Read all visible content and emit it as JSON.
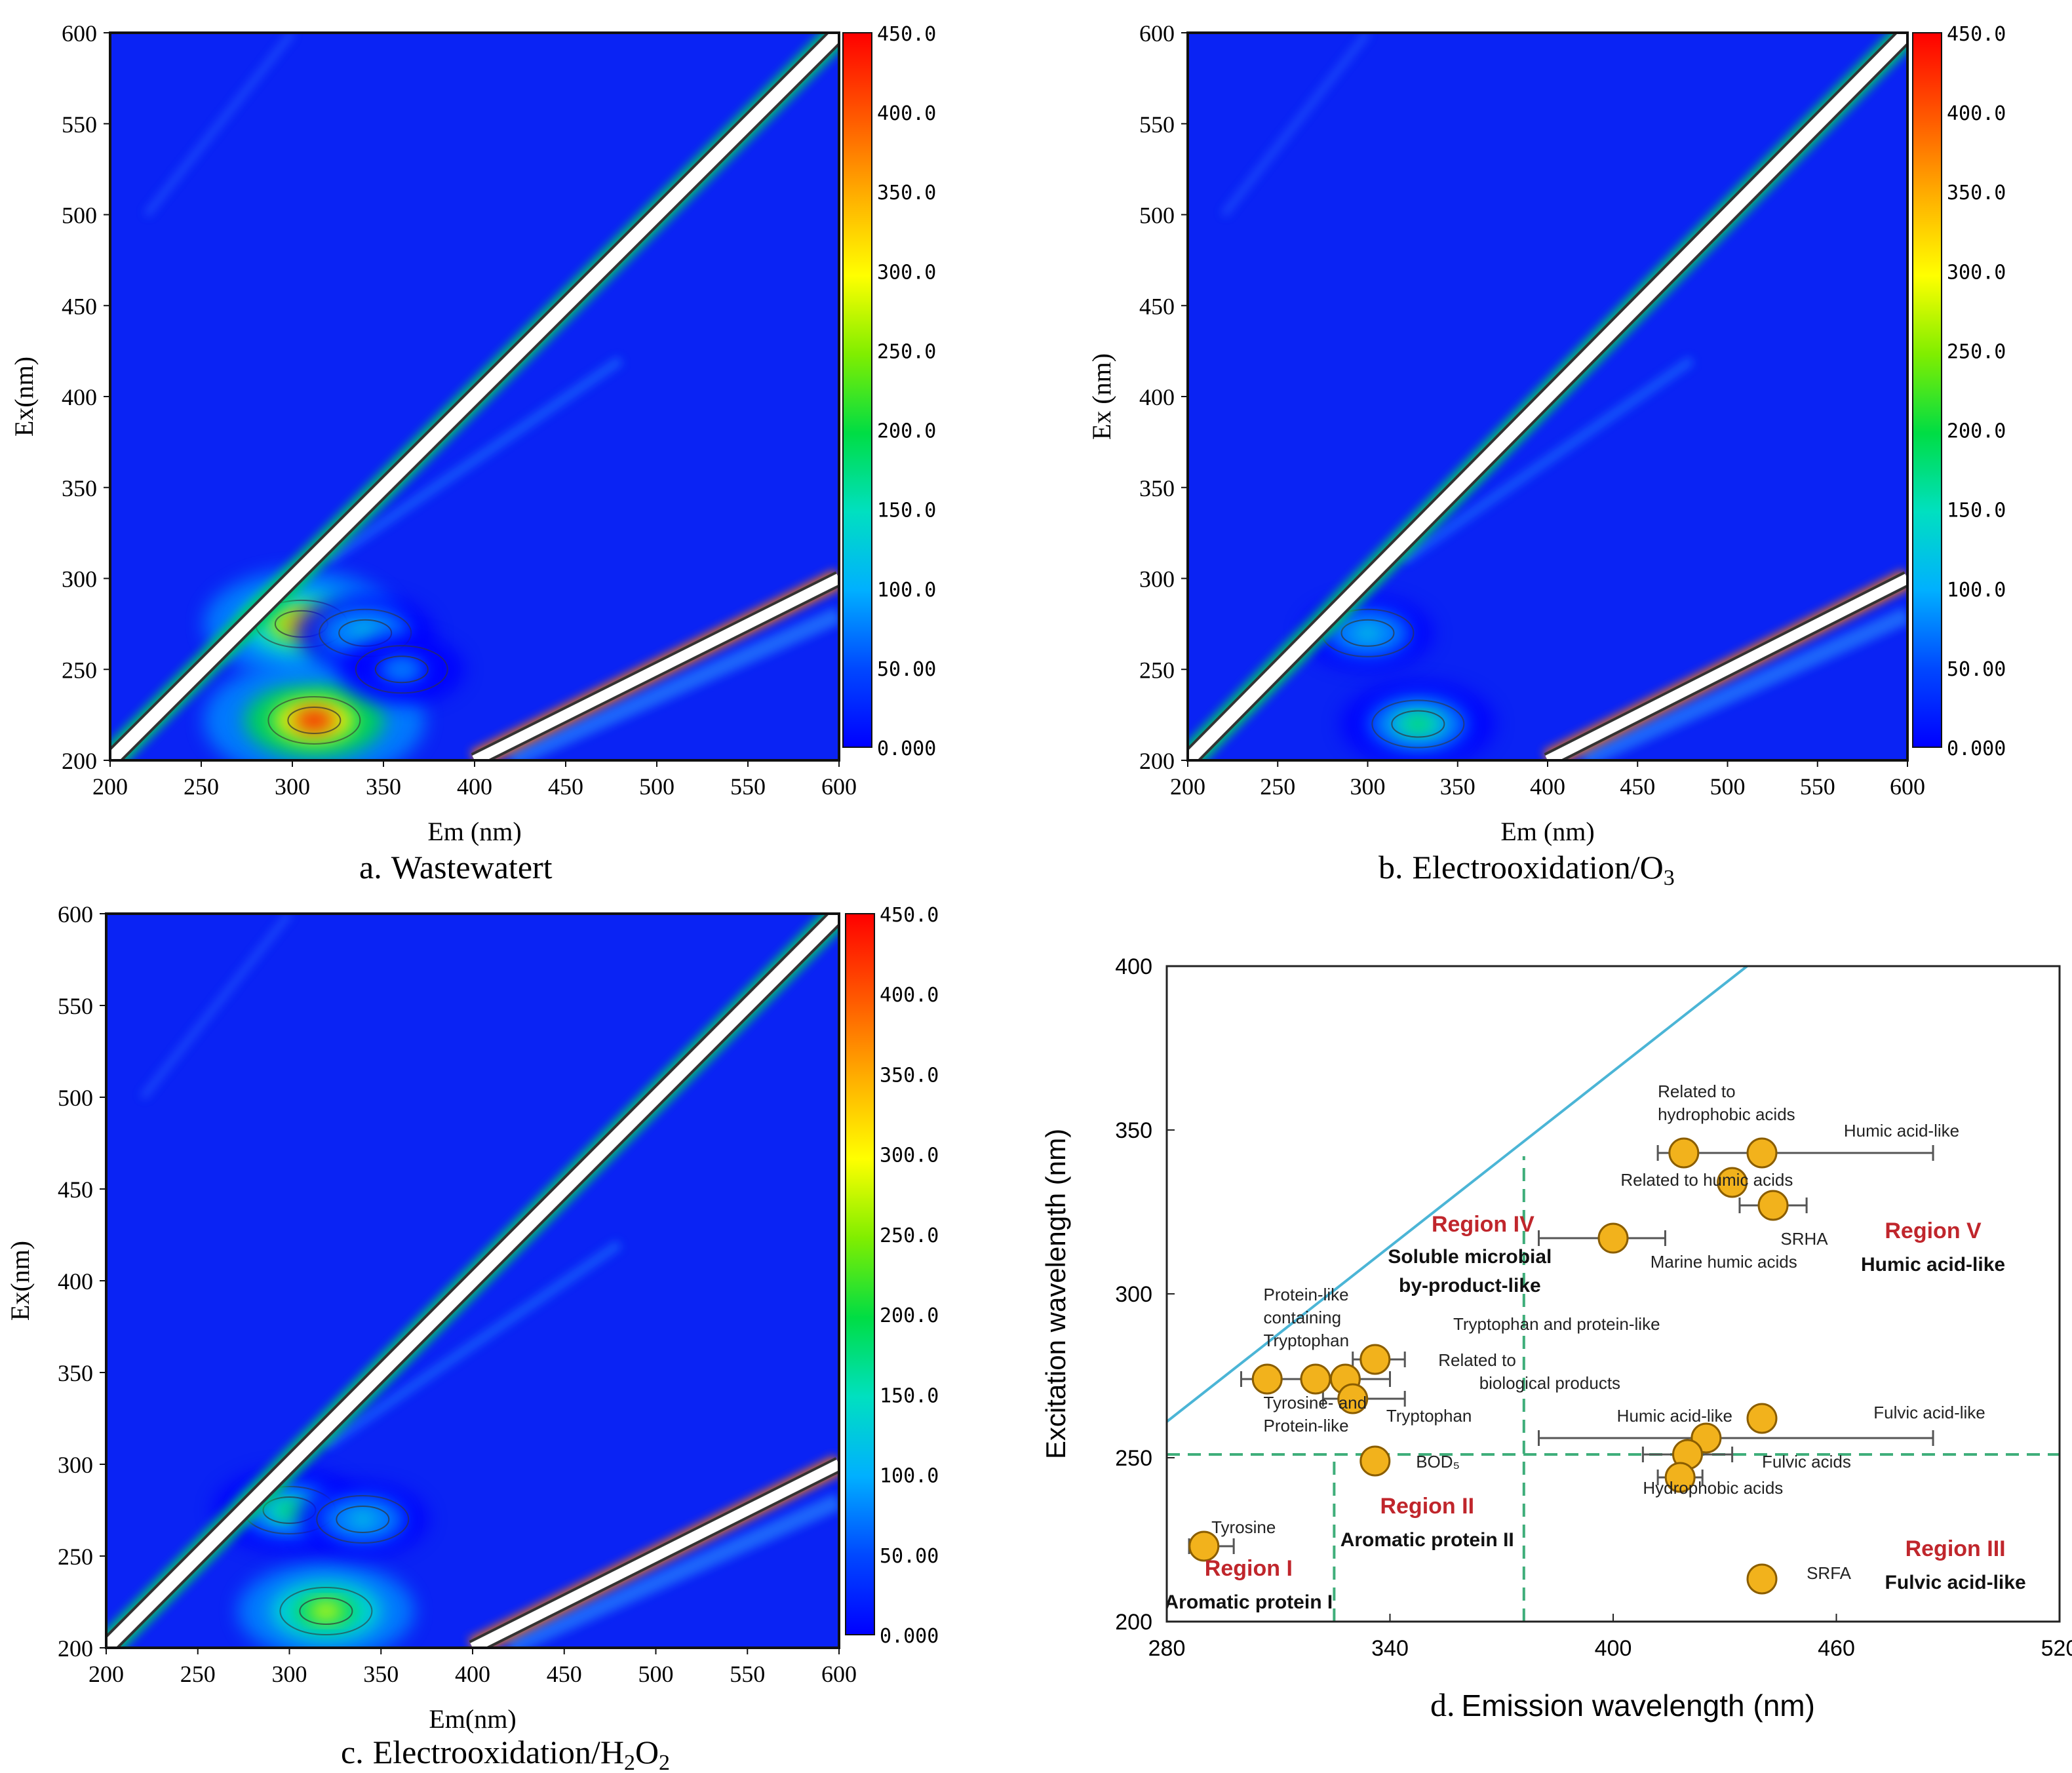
{
  "chart_data": [
    {
      "type": "heatmap",
      "panel": "a",
      "caption_letter": "a.",
      "caption_text": "Wastewatert",
      "xlabel": "Em (nm)",
      "ylabel": "Ex(nm)",
      "xlim": [
        200,
        600
      ],
      "ylim": [
        200,
        600
      ],
      "x_ticks": [
        "200",
        "250",
        "300",
        "350",
        "400",
        "450",
        "500",
        "550",
        "600"
      ],
      "y_ticks": [
        "200",
        "250",
        "300",
        "350",
        "400",
        "450",
        "500",
        "550",
        "600"
      ],
      "colorbar_ticks": [
        "0.000",
        "50.00",
        "100.0",
        "150.0",
        "200.0",
        "250.0",
        "300.0",
        "350.0",
        "400.0",
        "450.0"
      ],
      "colorbar_range": [
        0,
        450
      ],
      "peaks": [
        {
          "em": 312,
          "ex": 222,
          "intensity": 430
        },
        {
          "em": 305,
          "ex": 275,
          "intensity": 330
        },
        {
          "em": 340,
          "ex": 270,
          "intensity": 120
        },
        {
          "em": 360,
          "ex": 250,
          "intensity": 70
        }
      ]
    },
    {
      "type": "heatmap",
      "panel": "b",
      "caption_letter": "b.",
      "caption_text": "Electrooxidation/O",
      "caption_sub": "3",
      "xlabel": "Em (nm)",
      "ylabel": "Ex (nm)",
      "xlim": [
        200,
        600
      ],
      "ylim": [
        200,
        600
      ],
      "x_ticks": [
        "200",
        "250",
        "300",
        "350",
        "400",
        "450",
        "500",
        "550",
        "600"
      ],
      "y_ticks": [
        "200",
        "250",
        "300",
        "350",
        "400",
        "450",
        "500",
        "550",
        "600"
      ],
      "colorbar_ticks": [
        "0.000",
        "50.00",
        "100.0",
        "150.0",
        "200.0",
        "250.0",
        "300.0",
        "350.0",
        "400.0",
        "450.0"
      ],
      "colorbar_range": [
        0,
        450
      ],
      "peaks": [
        {
          "em": 328,
          "ex": 220,
          "intensity": 180
        },
        {
          "em": 300,
          "ex": 270,
          "intensity": 90
        }
      ]
    },
    {
      "type": "heatmap",
      "panel": "c",
      "caption_letter": "c.",
      "caption_text": "Electrooxidation/H",
      "caption_sub": "2",
      "caption_text2": "O",
      "caption_sub2": "2",
      "xlabel": "Em(nm)",
      "ylabel": "Ex(nm)",
      "xlim": [
        200,
        600
      ],
      "ylim": [
        200,
        600
      ],
      "x_ticks": [
        "200",
        "250",
        "300",
        "350",
        "400",
        "450",
        "500",
        "550",
        "600"
      ],
      "y_ticks": [
        "200",
        "250",
        "300",
        "350",
        "400",
        "450",
        "500",
        "550",
        "600"
      ],
      "colorbar_ticks": [
        "0.000",
        "50.00",
        "100.0",
        "150.0",
        "200.0",
        "250.0",
        "300.0",
        "350.0",
        "400.0",
        "450.0"
      ],
      "colorbar_range": [
        0,
        450
      ],
      "peaks": [
        {
          "em": 320,
          "ex": 220,
          "intensity": 260
        },
        {
          "em": 300,
          "ex": 275,
          "intensity": 170
        },
        {
          "em": 340,
          "ex": 270,
          "intensity": 90
        }
      ]
    },
    {
      "type": "scatter",
      "panel": "d",
      "caption_letter": "d.",
      "caption_text": "Emission wavelength (nm)",
      "xlabel": "",
      "ylabel": "Excitation wavelength (nm)",
      "xlim": [
        280,
        520
      ],
      "ylim": [
        200,
        400
      ],
      "x_ticks": [
        "280",
        "340",
        "400",
        "460",
        "520"
      ],
      "y_ticks": [
        "200",
        "250",
        "300",
        "350",
        "400"
      ],
      "points": [
        {
          "x": 290,
          "y": 223,
          "xerr": [
            286,
            298
          ]
        },
        {
          "x": 307,
          "y": 274,
          "xerr": [
            300,
            318
          ]
        },
        {
          "x": 320,
          "y": 274
        },
        {
          "x": 328,
          "y": 274,
          "xerr": [
            318,
            340
          ]
        },
        {
          "x": 330,
          "y": 268,
          "xerr": [
            322,
            344
          ]
        },
        {
          "x": 336,
          "y": 280,
          "xerr": [
            330,
            344
          ]
        },
        {
          "x": 336,
          "y": 249
        },
        {
          "x": 400,
          "y": 317,
          "xerr": [
            380,
            414
          ]
        },
        {
          "x": 419,
          "y": 343,
          "xerr": [
            412,
            422
          ]
        },
        {
          "x": 432,
          "y": 334
        },
        {
          "x": 440,
          "y": 343,
          "xerr": [
            420,
            486
          ]
        },
        {
          "x": 443,
          "y": 327,
          "xerr": [
            434,
            452
          ]
        },
        {
          "x": 425,
          "y": 256,
          "xerr": [
            380,
            486
          ]
        },
        {
          "x": 420,
          "y": 251,
          "xerr": [
            408,
            432
          ]
        },
        {
          "x": 418,
          "y": 244,
          "xerr": [
            412,
            424
          ]
        },
        {
          "x": 440,
          "y": 262
        },
        {
          "x": 440,
          "y": 213
        }
      ],
      "reference_line": {
        "from": [
          280,
          261
        ],
        "to": [
          436,
          400
        ]
      },
      "dashed_lines": {
        "x": [
          325,
          376
        ],
        "y": [
          251
        ]
      },
      "annotations": [
        {
          "text": "Tyrosine",
          "x": 292,
          "y": 227
        },
        {
          "text": "Protein-like",
          "x": 306,
          "y": 298
        },
        {
          "text": "containing",
          "x": 306,
          "y": 291
        },
        {
          "text": "Tryptophan",
          "x": 306,
          "y": 284
        },
        {
          "text": "Tyrosine- and",
          "x": 306,
          "y": 265
        },
        {
          "text": "Protein-like",
          "x": 306,
          "y": 258
        },
        {
          "text": "Tryptophan and protein-like",
          "x": 357,
          "y": 289
        },
        {
          "text": "Related to",
          "x": 353,
          "y": 278
        },
        {
          "text": "biological products",
          "x": 364,
          "y": 271
        },
        {
          "text": "Tryptophan",
          "x": 339,
          "y": 261
        },
        {
          "text": "BOD₅",
          "x": 347,
          "y": 247
        },
        {
          "text": "Related to",
          "x": 412,
          "y": 360
        },
        {
          "text": "hydrophobic acids",
          "x": 412,
          "y": 353
        },
        {
          "text": "Humic acid-like",
          "x": 462,
          "y": 348
        },
        {
          "text": "Related to humic acids",
          "x": 402,
          "y": 333
        },
        {
          "text": "SRHA",
          "x": 445,
          "y": 315
        },
        {
          "text": "Marine humic acids",
          "x": 410,
          "y": 308
        },
        {
          "text": "Humic acid-like",
          "x": 401,
          "y": 261
        },
        {
          "text": "Fulvic acid-like",
          "x": 470,
          "y": 262
        },
        {
          "text": "Fulvic acids",
          "x": 440,
          "y": 247
        },
        {
          "text": "Hydrophobic acids",
          "x": 408,
          "y": 239
        },
        {
          "text": "SRFA",
          "x": 452,
          "y": 213
        }
      ],
      "regions": [
        {
          "name": "Region I",
          "desc": "Aromatic protein I",
          "x": 302,
          "y": 214
        },
        {
          "name": "Region II",
          "desc": "Aromatic protein II",
          "x": 350,
          "y": 233
        },
        {
          "name": "Region III",
          "desc": "Fulvic acid-like",
          "x": 492,
          "y": 220
        },
        {
          "name": "Region IV",
          "desc": "Soluble microbial by-product-like",
          "x": 365,
          "y": 319
        },
        {
          "name": "Region V",
          "desc": "Humic acid-like",
          "x": 486,
          "y": 317
        }
      ],
      "region_desc_lines": {
        "Region IV": [
          "Soluble microbial",
          "by-product-like"
        ]
      }
    }
  ],
  "colors": {
    "background": "#0a23f4",
    "ramp": [
      "#0000ff",
      "#0088ff",
      "#00e0d0",
      "#00dd44",
      "#a0ee00",
      "#ffff00",
      "#ffb000",
      "#ff5a00",
      "#ff0000"
    ],
    "region_red": "#c0262c",
    "reference_line": "#4bb5d6",
    "dashed_green": "#3fae7a",
    "marker_fill": "#f2b21c",
    "marker_stroke": "#8a5d00"
  }
}
